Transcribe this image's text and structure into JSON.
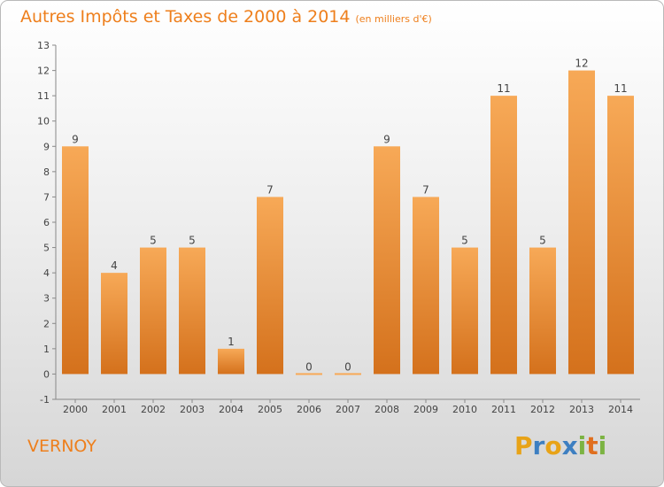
{
  "title": "Autres Impôts et Taxes de 2000 à 2014",
  "unit": "(en milliers d'€)",
  "commune": "VERNOY",
  "logo": {
    "letters": [
      "P",
      "r",
      "o",
      "x",
      "i",
      "t",
      "i"
    ],
    "colors": [
      "#e8a317",
      "#3d7fc1",
      "#e8a317",
      "#3d7fc1",
      "#7cb342",
      "#e06f1f",
      "#7cb342"
    ]
  },
  "colors": {
    "bar_light": "#f7a957",
    "bar_dark": "#d4711c",
    "title": "#ee7f1c"
  },
  "chart_data": {
    "type": "bar",
    "categories": [
      "2000",
      "2001",
      "2002",
      "2003",
      "2004",
      "2005",
      "2006",
      "2007",
      "2008",
      "2009",
      "2010",
      "2011",
      "2012",
      "2013",
      "2014"
    ],
    "values": [
      9,
      4,
      5,
      5,
      1,
      7,
      0,
      0,
      9,
      7,
      5,
      11,
      5,
      12,
      11
    ],
    "yticks": [
      -1,
      0,
      1,
      2,
      3,
      4,
      5,
      6,
      7,
      8,
      9,
      10,
      11,
      12,
      13
    ],
    "ylim": [
      -1,
      13
    ],
    "grid": false,
    "data_labels": true
  }
}
